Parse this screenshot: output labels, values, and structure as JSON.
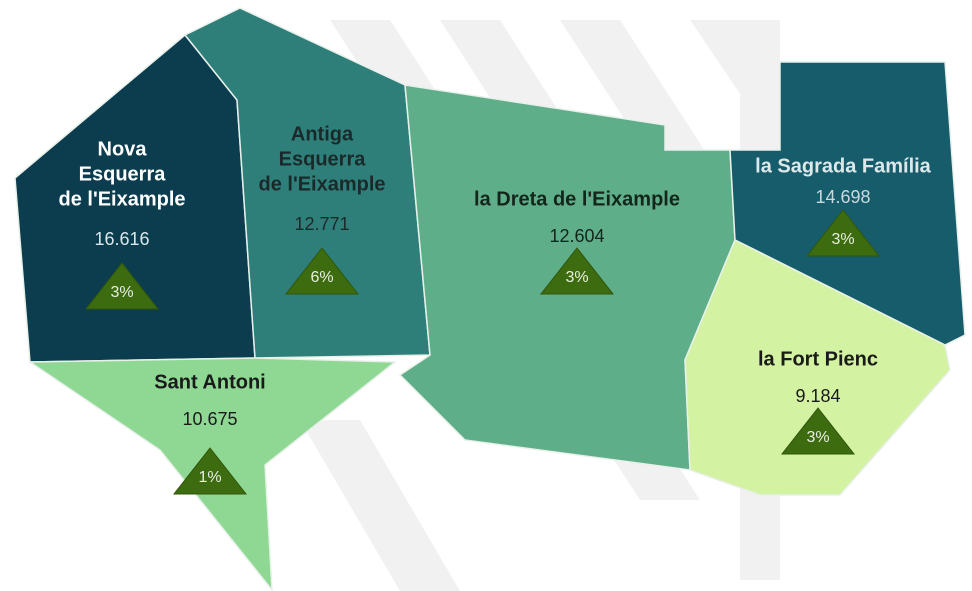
{
  "regions": [
    {
      "name_lines": [
        "Nova",
        "Esquerra",
        "de l'Eixample"
      ],
      "value": "16.616",
      "change": "3%",
      "color": "#0b3d4f",
      "text_color": "#ffffff",
      "value_color": "#d9e6ea"
    },
    {
      "name_lines": [
        "Antiga",
        "Esquerra",
        "de l'Eixample"
      ],
      "value": "12.771",
      "change": "6%",
      "color": "#2e7f7a",
      "text_color": "#1a2a2a",
      "value_color": "#1a2a2a"
    },
    {
      "name_lines": [
        "la Dreta de l'Eixample"
      ],
      "value": "12.604",
      "change": "3%",
      "color": "#5fae8a",
      "text_color": "#14251c",
      "value_color": "#14251c"
    },
    {
      "name_lines": [
        "la Sagrada Família"
      ],
      "value": "14.698",
      "change": "3%",
      "color": "#175c6a",
      "text_color": "#dde8ea",
      "value_color": "#c8dade"
    },
    {
      "name_lines": [
        "la Fort Pienc"
      ],
      "value": "9.184",
      "change": "3%",
      "color": "#d3f2a2",
      "text_color": "#1a1a1a",
      "value_color": "#1a1a1a"
    },
    {
      "name_lines": [
        "Sant Antoni"
      ],
      "value": "10.675",
      "change": "1%",
      "color": "#8fd894",
      "text_color": "#1a1a1a",
      "value_color": "#1a1a1a"
    }
  ]
}
